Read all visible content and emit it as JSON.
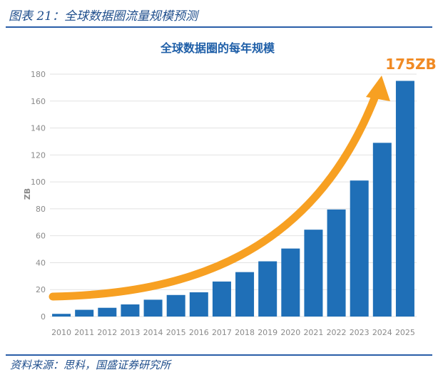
{
  "figure": {
    "caption": "图表 21：全球数据圈流量规模预测",
    "source": "资料来源：思科，国盛证券研究所"
  },
  "chart_data": {
    "type": "bar",
    "title": "全球数据圈的每年规模",
    "ylabel": "ZB",
    "xlabel": "",
    "categories": [
      "2010",
      "2011",
      "2012",
      "2013",
      "2014",
      "2015",
      "2016",
      "2017",
      "2018",
      "2019",
      "2020",
      "2021",
      "2022",
      "2023",
      "2024",
      "2025"
    ],
    "values": [
      2,
      5,
      6.5,
      9,
      12.5,
      16,
      18,
      26,
      33,
      41,
      50.5,
      64.5,
      79.5,
      101,
      129,
      175
    ],
    "ylim": [
      0,
      180
    ],
    "yticks": [
      0,
      20,
      40,
      60,
      80,
      100,
      120,
      140,
      160,
      180
    ],
    "grid": true,
    "annotation": "175ZB",
    "colors": {
      "bar": "#1f6fb7",
      "arrow": "#f7a022",
      "annotation": "#f08a24",
      "title": "#1f5fa8",
      "axis_text": "#8a8a8a",
      "grid": "#e2e2e2"
    }
  }
}
